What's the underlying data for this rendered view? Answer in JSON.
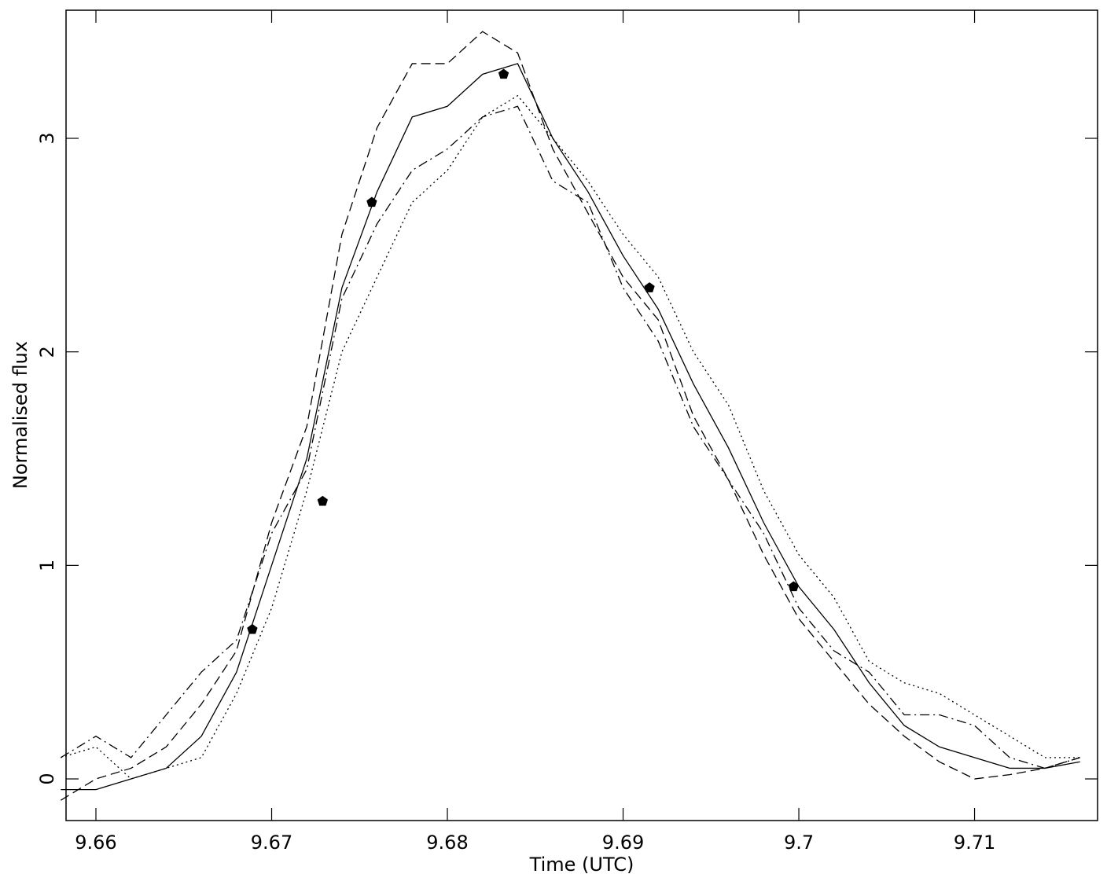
{
  "chart_data": {
    "type": "line",
    "xlabel": "Time (UTC)",
    "ylabel": "Normalised flux",
    "xlim": [
      9.6583,
      9.717
    ],
    "ylim": [
      -0.195,
      3.6
    ],
    "xticks": [
      9.66,
      9.67,
      9.68,
      9.69,
      9.7,
      9.71
    ],
    "yticks": [
      0,
      1,
      2,
      3
    ],
    "x": [
      9.658,
      9.66,
      9.662,
      9.664,
      9.666,
      9.668,
      9.67,
      9.672,
      9.674,
      9.676,
      9.678,
      9.68,
      9.682,
      9.684,
      9.686,
      9.688,
      9.69,
      9.692,
      9.694,
      9.696,
      9.698,
      9.7,
      9.702,
      9.704,
      9.706,
      9.708,
      9.71,
      9.712,
      9.714,
      9.716
    ],
    "series": [
      {
        "style": "solid",
        "color": "#000000",
        "values": [
          -0.05,
          -0.05,
          0.0,
          0.05,
          0.2,
          0.5,
          1.0,
          1.5,
          2.3,
          2.75,
          3.1,
          3.15,
          3.3,
          3.35,
          3.0,
          2.75,
          2.45,
          2.2,
          1.85,
          1.55,
          1.2,
          0.9,
          0.7,
          0.45,
          0.25,
          0.15,
          0.1,
          0.05,
          0.05,
          0.08
        ]
      },
      {
        "style": "dashed",
        "color": "#000000",
        "values": [
          -0.1,
          0.0,
          0.05,
          0.15,
          0.35,
          0.6,
          1.2,
          1.65,
          2.55,
          3.05,
          3.35,
          3.35,
          3.5,
          3.4,
          2.95,
          2.65,
          2.35,
          2.15,
          1.7,
          1.4,
          1.05,
          0.75,
          0.55,
          0.35,
          0.2,
          0.08,
          0.0,
          0.02,
          0.05,
          0.1
        ]
      },
      {
        "style": "dashdot",
        "color": "#000000",
        "values": [
          0.1,
          0.2,
          0.1,
          0.3,
          0.5,
          0.65,
          1.15,
          1.45,
          2.25,
          2.6,
          2.85,
          2.95,
          3.1,
          3.15,
          2.8,
          2.7,
          2.3,
          2.05,
          1.65,
          1.4,
          1.15,
          0.8,
          0.6,
          0.5,
          0.3,
          0.3,
          0.25,
          0.1,
          0.05,
          0.1
        ]
      },
      {
        "style": "dotted",
        "color": "#000000",
        "values": [
          0.1,
          0.15,
          0.0,
          0.05,
          0.1,
          0.4,
          0.8,
          1.35,
          2.0,
          2.35,
          2.7,
          2.85,
          3.1,
          3.2,
          3.0,
          2.8,
          2.55,
          2.35,
          2.0,
          1.75,
          1.35,
          1.05,
          0.85,
          0.55,
          0.45,
          0.4,
          0.3,
          0.2,
          0.1,
          0.1
        ]
      }
    ],
    "markers": {
      "color": "#000000",
      "x": [
        9.6689,
        9.6729,
        9.6757,
        9.6832,
        9.6915,
        9.6997
      ],
      "values": [
        0.7,
        1.3,
        2.7,
        3.3,
        2.3,
        0.9
      ]
    }
  }
}
